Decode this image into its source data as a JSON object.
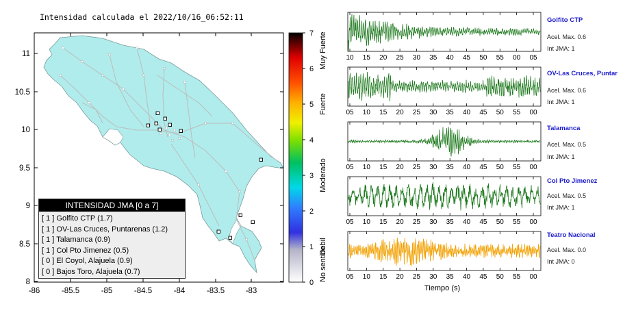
{
  "map": {
    "title": "Intensidad calculada el 2022/10/16_06:52:11",
    "y_ticks": [
      "11",
      "10.5",
      "10",
      "9.5",
      "9",
      "8.5",
      "8"
    ],
    "x_ticks": [
      "-86",
      "-85.5",
      "-85",
      "-84.5",
      "-84",
      "-83.5",
      "-83"
    ],
    "colorbar_ticks": [
      "7",
      "6",
      "5",
      "4",
      "3",
      "2",
      "1",
      "0"
    ],
    "colorbar_labels": [
      "Muy Fuerte",
      "Fuerte",
      "Moderado",
      "Debil",
      "No sentido"
    ],
    "legend_title": "INTENSIDAD JMA [0 a 7]",
    "legend_items": [
      "[ 1 ]  Golfito CTP (1.7)",
      "[ 1 ]  OV-Las Cruces, Puntarenas (1.2)",
      "[ 1 ]  Talamanca (0.9)",
      "[ 1 ]  Col Pto Jimenez (0.5)",
      "[ 0 ]  El Coyol, Alajuela (0.9)",
      "[ 0 ]  Bajos Toro, Alajuela (0.7)"
    ],
    "land_color": "#b0ecec",
    "colors": {
      "wave_green": "#1f7a1f",
      "wave_orange": "#f2a000",
      "station_blue": "#1a1acc"
    }
  },
  "waveforms": [
    {
      "name": "Golfito CTP",
      "accel": "Acel. Max. 0.6",
      "int": "Int JMA: 1",
      "ticks": [
        "10",
        "15",
        "20",
        "25",
        "30",
        "35",
        "40",
        "45",
        "50",
        "55",
        "00",
        "05"
      ],
      "color": "#1f7a1f"
    },
    {
      "name": "OV-Las Cruces, Puntar",
      "accel": "Acel. Max. 0.6",
      "int": "Int JMA: 1",
      "ticks": [
        "05",
        "10",
        "15",
        "20",
        "25",
        "30",
        "35",
        "40",
        "45",
        "50",
        "55",
        "00"
      ],
      "color": "#1f7a1f"
    },
    {
      "name": "Talamanca",
      "accel": "Acel. Max. 0.5",
      "int": "Int JMA: 1",
      "ticks": [
        "05",
        "10",
        "15",
        "20",
        "25",
        "30",
        "35",
        "40",
        "45",
        "50",
        "55",
        "00"
      ],
      "color": "#1f7a1f"
    },
    {
      "name": "Col Pto Jimenez",
      "accel": "Acel. Max. 0.5",
      "int": "Int JMA: 1",
      "ticks": [
        "05",
        "10",
        "15",
        "20",
        "25",
        "30",
        "35",
        "40",
        "45",
        "50",
        "55",
        "00"
      ],
      "color": "#1f7a1f"
    },
    {
      "name": "Teatro Nacional",
      "accel": "Acel. Max. 0.0",
      "int": "Int JMA: 0",
      "ticks": [
        "05",
        "10",
        "15",
        "20",
        "25",
        "30",
        "35",
        "40",
        "45",
        "50",
        "55",
        "00"
      ],
      "color": "#f2a000"
    }
  ],
  "time_axis_label": "Tiempo (s)"
}
